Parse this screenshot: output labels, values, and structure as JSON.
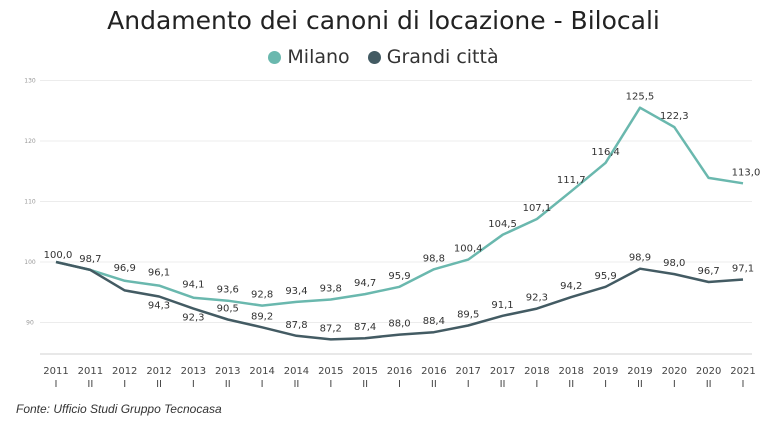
{
  "chart_data": {
    "type": "line",
    "title": "Andamento dei canoni di locazione - Bilocali",
    "source": "Fonte: Ufficio Studi Gruppo Tecnocasa",
    "legend_position": "top-center",
    "grid": true,
    "ylim": [
      85,
      135
    ],
    "yticks": [
      90,
      100,
      110,
      120,
      130
    ],
    "categories": [
      {
        "year": "2011",
        "half": "I"
      },
      {
        "year": "2011",
        "half": "II"
      },
      {
        "year": "2012",
        "half": "I"
      },
      {
        "year": "2012",
        "half": "II"
      },
      {
        "year": "2013",
        "half": "I"
      },
      {
        "year": "2013",
        "half": "II"
      },
      {
        "year": "2014",
        "half": "I"
      },
      {
        "year": "2014",
        "half": "II"
      },
      {
        "year": "2015",
        "half": "I"
      },
      {
        "year": "2015",
        "half": "II"
      },
      {
        "year": "2016",
        "half": "I"
      },
      {
        "year": "2016",
        "half": "II"
      },
      {
        "year": "2017",
        "half": "I"
      },
      {
        "year": "2017",
        "half": "II"
      },
      {
        "year": "2018",
        "half": "I"
      },
      {
        "year": "2018",
        "half": "II"
      },
      {
        "year": "2019",
        "half": "I"
      },
      {
        "year": "2019",
        "half": "II"
      },
      {
        "year": "2020",
        "half": "I"
      },
      {
        "year": "2020",
        "half": "II"
      },
      {
        "year": "2021",
        "half": "I"
      }
    ],
    "series": [
      {
        "name": "Milano",
        "color": "#6ab8ae",
        "values": [
          100.0,
          98.7,
          96.9,
          96.1,
          94.1,
          93.6,
          92.8,
          93.4,
          93.8,
          94.7,
          95.9,
          98.8,
          100.4,
          104.5,
          107.1,
          111.7,
          116.4,
          125.5,
          122.3,
          113.9,
          113.0
        ],
        "labels": [
          "100,0",
          "98,7",
          "96,9",
          "96,1",
          "94,1",
          "93,6",
          "92,8",
          "93,4",
          "93,8",
          "94,7",
          "95,9",
          "98,8",
          "100,4",
          "104,5",
          "107,1",
          "111,7",
          "116,4",
          "125,5",
          "122,3",
          "",
          "113,0"
        ]
      },
      {
        "name": "Grandi città",
        "color": "#435b63",
        "values": [
          100.0,
          98.7,
          95.3,
          94.3,
          92.3,
          90.5,
          89.2,
          87.8,
          87.2,
          87.4,
          88.0,
          88.4,
          89.5,
          91.1,
          92.3,
          94.2,
          95.9,
          98.9,
          98.0,
          96.7,
          97.1
        ],
        "labels": [
          "",
          "",
          "",
          "94,3",
          "92,3",
          "90,5",
          "89,2",
          "87,8",
          "87,2",
          "87,4",
          "88,0",
          "88,4",
          "89,5",
          "91,1",
          "92,3",
          "94,2",
          "95,9",
          "98,9",
          "98,0",
          "96,7",
          "97,1"
        ]
      }
    ]
  }
}
